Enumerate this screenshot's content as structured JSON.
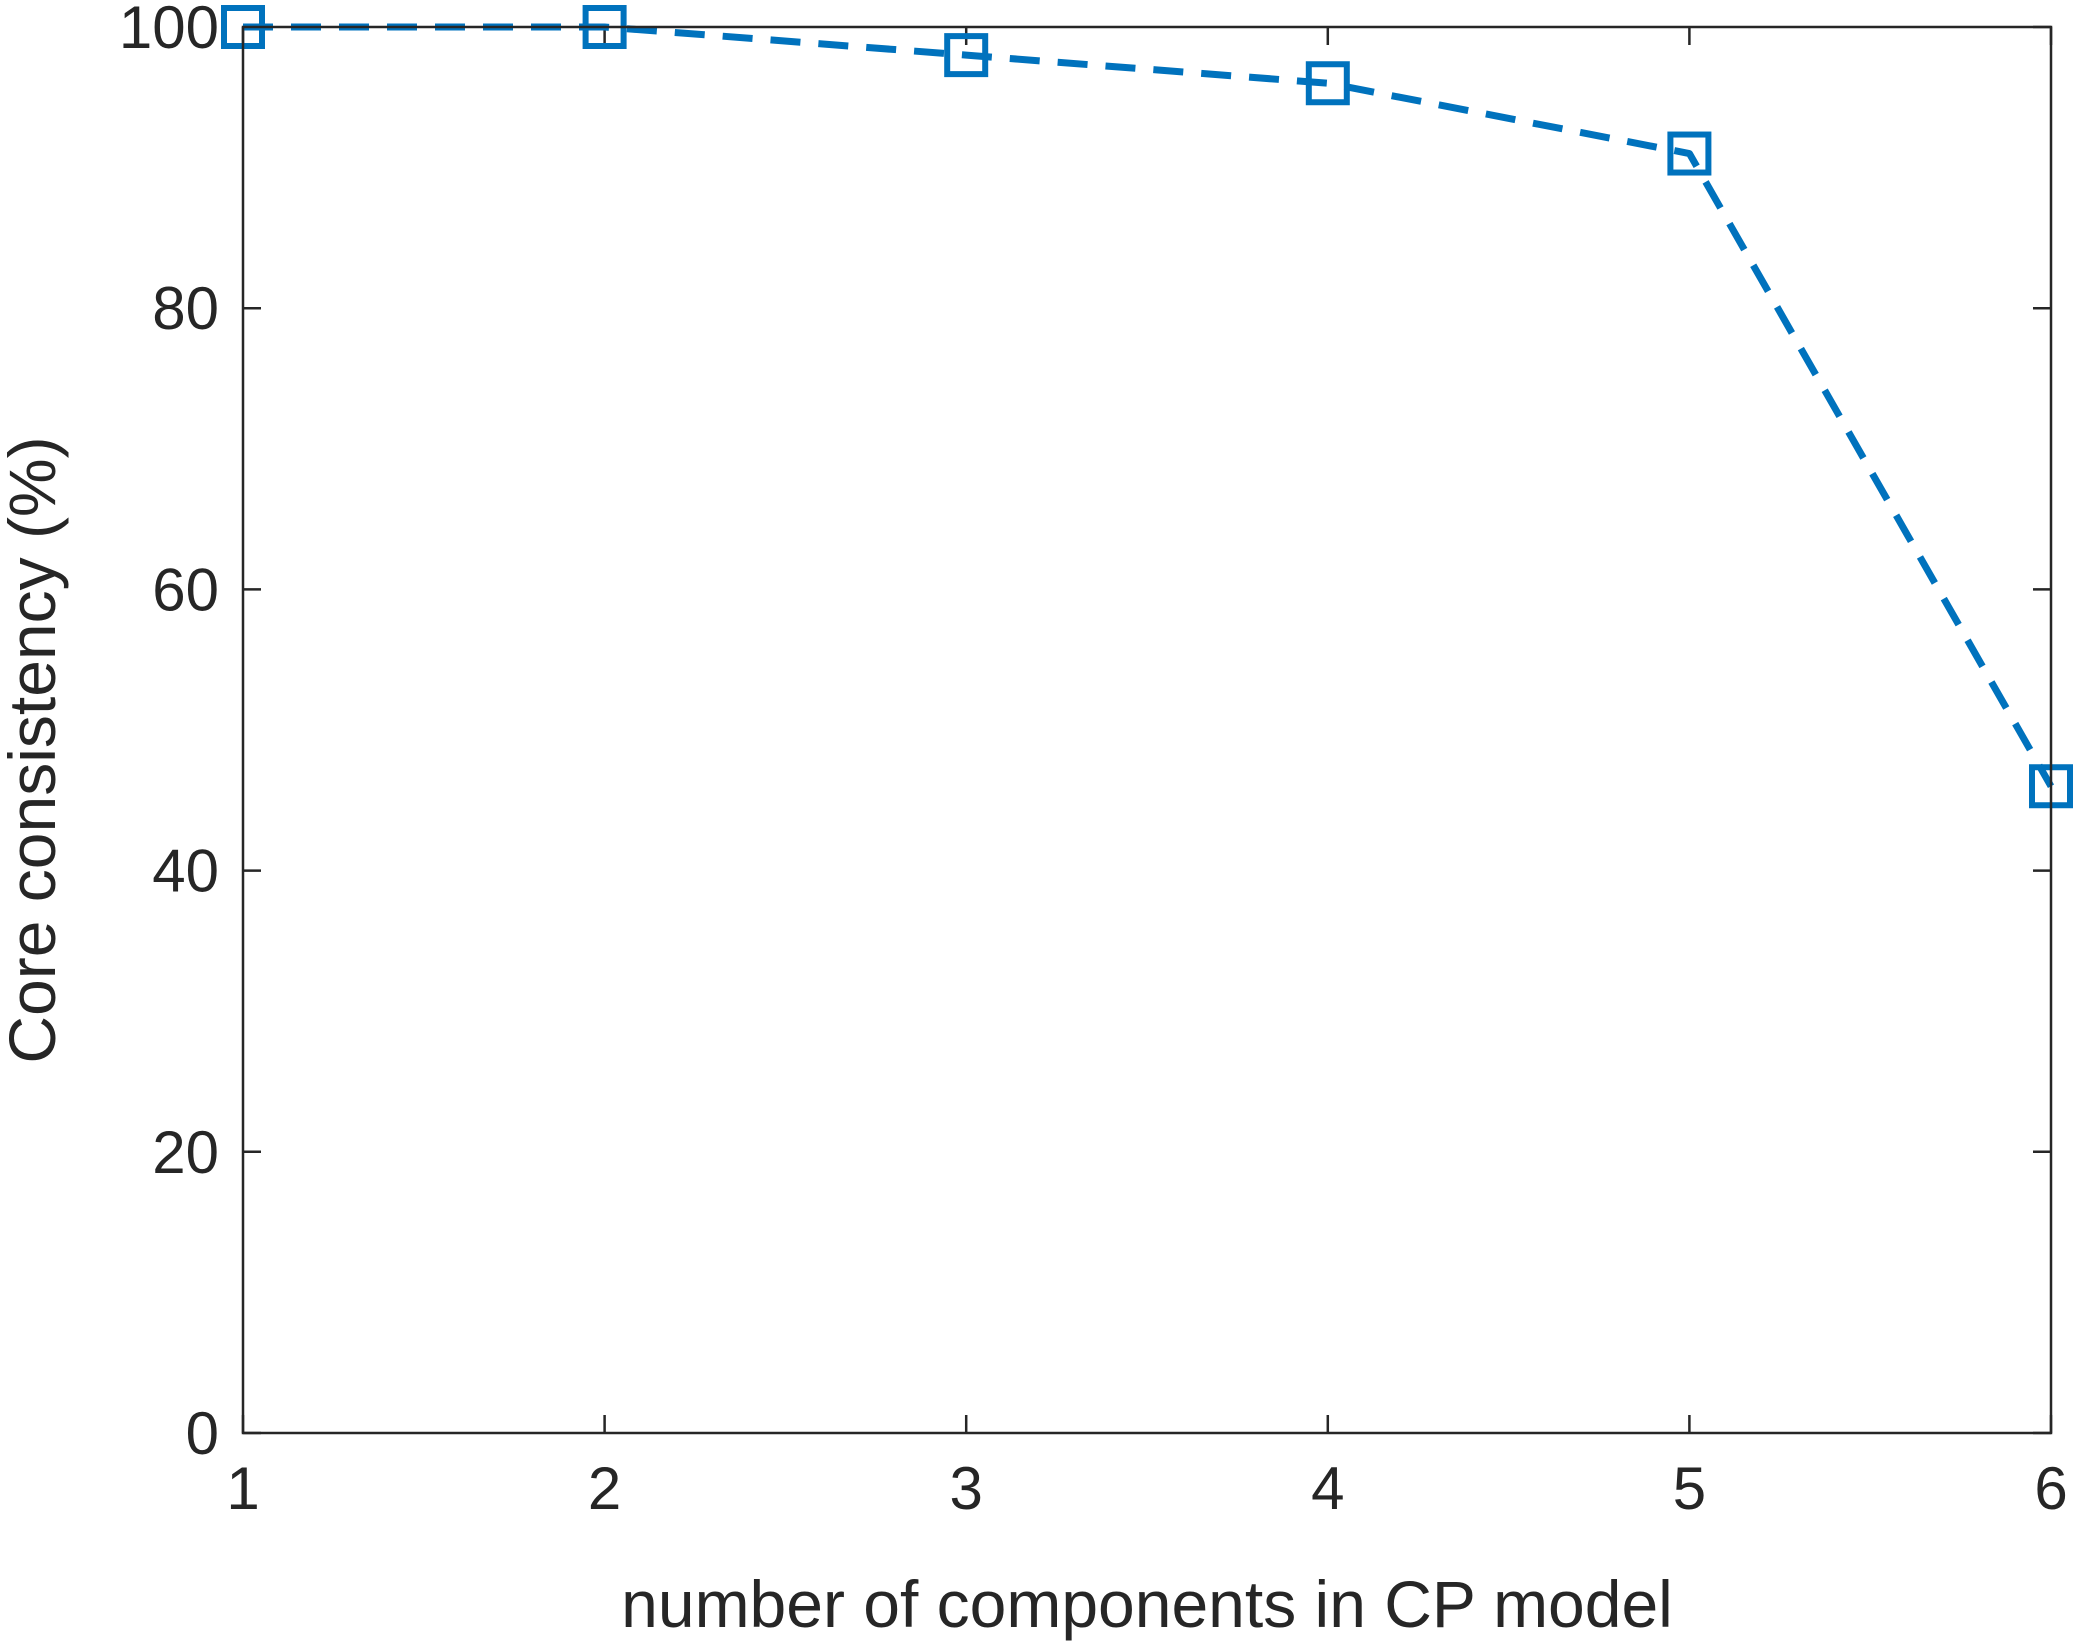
{
  "chart_data": {
    "type": "line",
    "title": "",
    "xlabel": "number of components in CP model",
    "ylabel": "Core consistency (%)",
    "xlim": [
      1,
      6
    ],
    "ylim": [
      0,
      100
    ],
    "x_ticks": [
      "1",
      "2",
      "3",
      "4",
      "5",
      "6"
    ],
    "y_ticks": [
      "0",
      "20",
      "40",
      "60",
      "80",
      "100"
    ],
    "grid": false,
    "box": true,
    "line_style": "dashed",
    "marker": "square",
    "color": "#0072BD",
    "series": [
      {
        "x": [
          1,
          2,
          3,
          4,
          5,
          6
        ],
        "values": [
          100,
          100,
          98,
          96,
          91,
          46
        ]
      }
    ]
  }
}
